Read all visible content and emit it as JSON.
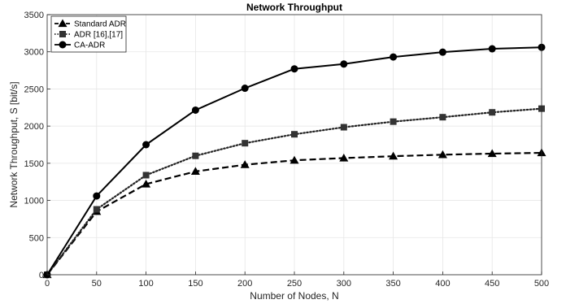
{
  "chart_data": {
    "type": "line",
    "title": "Network Throughput",
    "xlabel": "Number of Nodes, N",
    "ylabel": "Network Throughput, S [bit/s]",
    "xlim": [
      0,
      500
    ],
    "ylim": [
      0,
      3500
    ],
    "xticks": [
      0,
      50,
      100,
      150,
      200,
      250,
      300,
      350,
      400,
      450,
      500
    ],
    "yticks": [
      0,
      500,
      1000,
      1500,
      2000,
      2500,
      3000,
      3500
    ],
    "grid": true,
    "legend_position": "top-left",
    "x": [
      0,
      50,
      100,
      150,
      200,
      250,
      300,
      350,
      400,
      450,
      500
    ],
    "series": [
      {
        "name": "Standard ADR",
        "marker": "triangle",
        "line_style": "dashed",
        "color": "#000000",
        "values": [
          0,
          850,
          1220,
          1390,
          1480,
          1540,
          1570,
          1595,
          1615,
          1630,
          1640
        ]
      },
      {
        "name": "ADR [16],[17]",
        "marker": "square",
        "line_style": "dotted",
        "color": "#222222",
        "values": [
          0,
          880,
          1340,
          1600,
          1770,
          1890,
          1985,
          2060,
          2120,
          2185,
          2235
        ]
      },
      {
        "name": "CA-ADR",
        "marker": "circle",
        "line_style": "solid",
        "color": "#000000",
        "values": [
          0,
          1060,
          1750,
          2215,
          2510,
          2770,
          2835,
          2930,
          2995,
          3040,
          3060
        ]
      }
    ]
  }
}
